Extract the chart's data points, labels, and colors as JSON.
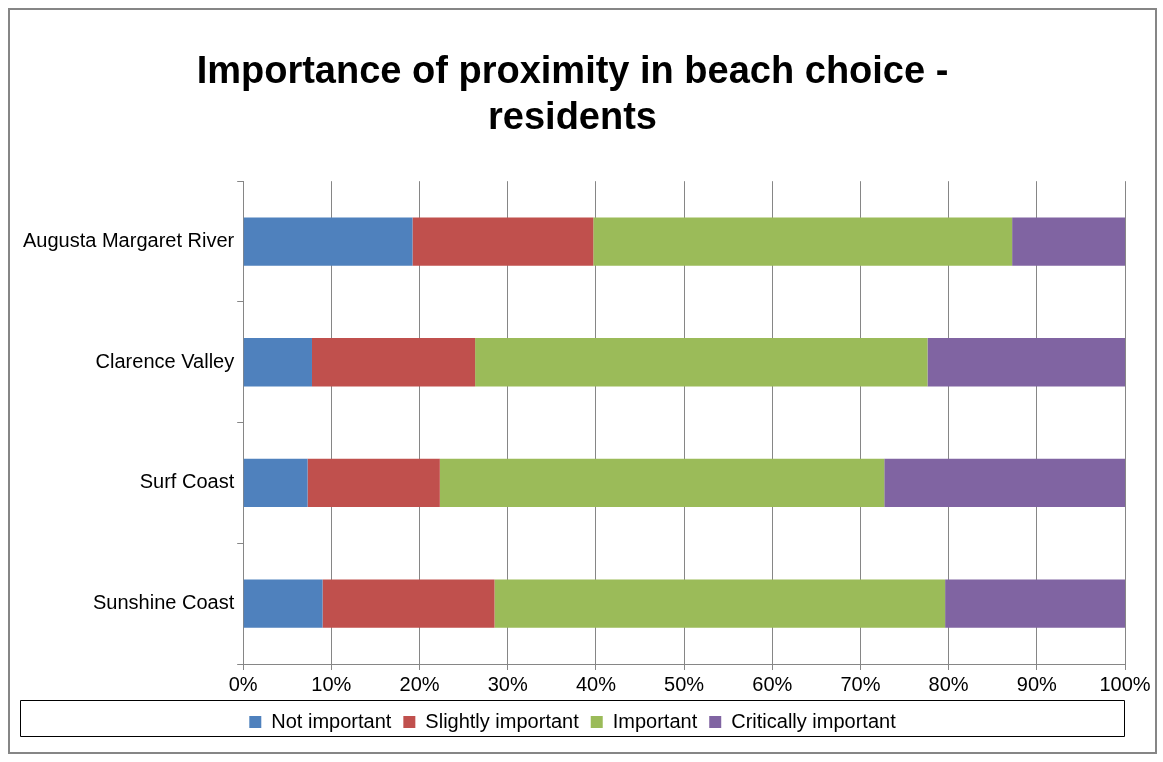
{
  "chart_data": {
    "type": "bar",
    "orientation": "horizontal",
    "stacked": true,
    "title": "Importance of proximity in beach choice - residents",
    "categories": [
      "Augusta Margaret River",
      "Clarence Valley",
      "Surf Coast",
      "Sunshine Coast"
    ],
    "series": [
      {
        "name": "Not important",
        "color": "#4f81bd",
        "values": [
          19.2,
          7.8,
          7.3,
          9.0
        ]
      },
      {
        "name": "Slightly important",
        "color": "#c0504d",
        "values": [
          20.5,
          18.5,
          15.0,
          19.5
        ]
      },
      {
        "name": "Important",
        "color": "#9bbb59",
        "values": [
          47.5,
          51.3,
          50.4,
          51.1
        ]
      },
      {
        "name": "Critically important",
        "color": "#8064a2",
        "values": [
          12.8,
          22.4,
          27.3,
          20.4
        ]
      }
    ],
    "xlim": [
      0,
      100
    ],
    "xticks": [
      {
        "value": 0,
        "label": "0%"
      },
      {
        "value": 10,
        "label": "10%"
      },
      {
        "value": 20,
        "label": "20%"
      },
      {
        "value": 30,
        "label": "30%"
      },
      {
        "value": 40,
        "label": "40%"
      },
      {
        "value": 50,
        "label": "50%"
      },
      {
        "value": 60,
        "label": "60%"
      },
      {
        "value": 70,
        "label": "70%"
      },
      {
        "value": 80,
        "label": "80%"
      },
      {
        "value": 90,
        "label": "90%"
      },
      {
        "value": 100,
        "label": "100%"
      }
    ],
    "grid": "x",
    "legend": "bottom"
  }
}
